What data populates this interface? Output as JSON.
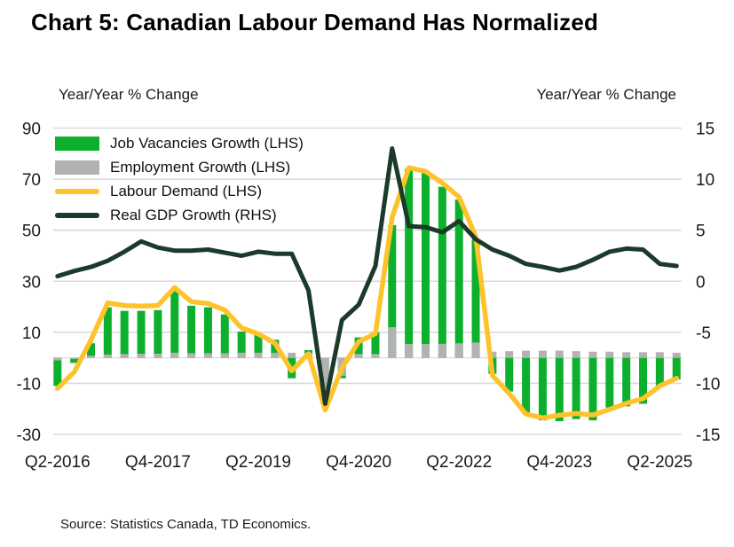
{
  "title": "Chart 5: Canadian Labour Demand Has Normalized",
  "axis_left_title": "Year/Year % Change",
  "axis_right_title": "Year/Year % Change",
  "source": "Source: Statistics Canada, TD Economics.",
  "colors": {
    "vacancies_green": "#0DB02C",
    "employment_gray": "#B2B2B2",
    "labour_demand_yellow": "#FEC32B",
    "gdp_dark_green": "#1B3A2A",
    "gridline": "#DADADA",
    "tick_text": "#1a1a1a"
  },
  "legend": [
    {
      "label": "Job Vacancies Growth (LHS)",
      "type": "bar",
      "color": "#0DB02C"
    },
    {
      "label": "Employment Growth (LHS)",
      "type": "bar",
      "color": "#B2B2B2"
    },
    {
      "label": "Labour Demand (LHS)",
      "type": "line",
      "color": "#FEC32B"
    },
    {
      "label": "Real GDP Growth (RHS)",
      "type": "line",
      "color": "#1B3A2A"
    }
  ],
  "chart_data": {
    "type": "combo",
    "categories": [
      "Q2-2016",
      "Q3-2016",
      "Q4-2016",
      "Q1-2017",
      "Q2-2017",
      "Q3-2017",
      "Q4-2017",
      "Q1-2018",
      "Q2-2018",
      "Q3-2018",
      "Q4-2018",
      "Q1-2019",
      "Q2-2019",
      "Q3-2019",
      "Q4-2019",
      "Q1-2020",
      "Q2-2020",
      "Q3-2020",
      "Q4-2020",
      "Q1-2021",
      "Q2-2021",
      "Q3-2021",
      "Q4-2021",
      "Q1-2022",
      "Q2-2022",
      "Q3-2022",
      "Q4-2022",
      "Q1-2023",
      "Q2-2023",
      "Q3-2023",
      "Q4-2023",
      "Q1-2024",
      "Q2-2024",
      "Q3-2024",
      "Q4-2024",
      "Q1-2025",
      "Q2-2025",
      "Q3-2025"
    ],
    "x_tick_indices": [
      0,
      6,
      12,
      18,
      24,
      30,
      36
    ],
    "x_tick_labels": [
      "Q2-2016",
      "Q4-2017",
      "Q2-2019",
      "Q4-2020",
      "Q2-2022",
      "Q4-2023",
      "Q2-2025"
    ],
    "axis_left": {
      "min": -30,
      "max": 90,
      "ticks": [
        90,
        70,
        50,
        30,
        10,
        -10,
        -30
      ]
    },
    "axis_right": {
      "min": -15,
      "max": 15,
      "ticks": [
        15,
        10,
        5,
        0,
        -5,
        -10,
        -15
      ]
    },
    "grid": true,
    "legend_position": "top-left-inside",
    "series": [
      {
        "name": "Job Vacancies Growth (LHS)",
        "type": "bar",
        "axis": "left",
        "color": "#0DB02C",
        "values": [
          -11,
          -2,
          5.7,
          19.8,
          18.4,
          18.4,
          18.7,
          26.2,
          20.4,
          19.8,
          17,
          10.3,
          9.6,
          7.1,
          -8,
          3,
          null,
          -8,
          8,
          10,
          52,
          74,
          72.5,
          67,
          62,
          46.5,
          -6.3,
          -13.2,
          -21.9,
          -24.5,
          -24.8,
          -24,
          -24.5,
          -19.5,
          -19,
          -18,
          -11,
          -8.5
        ]
      },
      {
        "name": "Employment Growth (LHS)",
        "type": "bar",
        "axis": "left",
        "color": "#B2B2B2",
        "values": [
          -1,
          -0.5,
          0.8,
          1.3,
          1.5,
          1.6,
          1.6,
          2,
          1.8,
          1.8,
          1.8,
          2,
          2,
          2,
          2,
          2,
          -12,
          -7,
          1.5,
          1.5,
          12,
          5.4,
          5.4,
          5.5,
          5.7,
          6,
          2.4,
          2.6,
          2.8,
          2.8,
          2.8,
          2.6,
          2.4,
          2.4,
          2.2,
          2.2,
          2.2,
          2
        ]
      },
      {
        "name": "Labour Demand (LHS)",
        "type": "line",
        "axis": "left",
        "color": "#FEC32B",
        "values": [
          -12,
          -5.5,
          7,
          21.5,
          20.5,
          20.3,
          20.5,
          27.5,
          22,
          21.3,
          18.7,
          11.7,
          9.4,
          5.7,
          -5.1,
          1.6,
          -20.5,
          -4,
          6.3,
          9.5,
          55,
          74.5,
          73,
          68.5,
          63,
          47.5,
          -7,
          -14,
          -22,
          -23.5,
          -22.5,
          -21.8,
          -22.4,
          -20.2,
          -17.8,
          -16,
          -11,
          -8
        ]
      },
      {
        "name": "Real GDP Growth (RHS)",
        "type": "line",
        "axis": "right",
        "color": "#1B3A2A",
        "values": [
          0.5,
          1.0,
          1.4,
          2.0,
          2.9,
          3.9,
          3.3,
          3.0,
          3.0,
          3.1,
          2.8,
          2.5,
          2.9,
          2.7,
          2.7,
          -0.9,
          -12.0,
          -3.8,
          -2.3,
          1.5,
          13.0,
          5.4,
          5.3,
          4.8,
          5.9,
          4.1,
          3.1,
          2.5,
          1.7,
          1.4,
          1.05,
          1.4,
          2.1,
          2.9,
          3.2,
          3.1,
          1.7,
          1.5
        ]
      }
    ]
  }
}
